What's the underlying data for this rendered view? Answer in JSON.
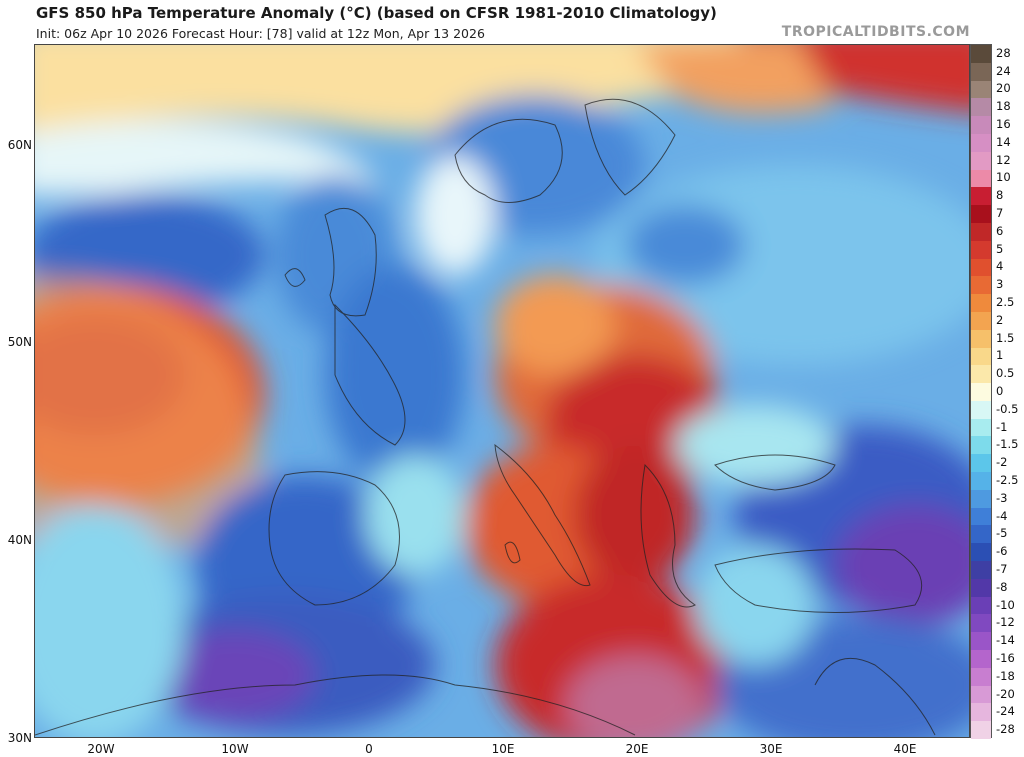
{
  "header": {
    "title": "GFS 850 hPa Temperature Anomaly (°C) (based on CFSR 1981-2010 Climatology)",
    "subtitle": "Init: 06z Apr 10 2026   Forecast Hour: [78]   valid at 12z Mon, Apr 13 2026",
    "brand": "TROPICALTIDBITS.COM"
  },
  "axes": {
    "lat_labels": [
      "60N",
      "50N",
      "40N",
      "30N"
    ],
    "lon_labels": [
      "20W",
      "10W",
      "0",
      "10E",
      "20E",
      "30E",
      "40E"
    ]
  },
  "colorbar": {
    "levels": [
      "28",
      "24",
      "20",
      "18",
      "16",
      "14",
      "12",
      "10",
      "8",
      "7",
      "6",
      "5",
      "4",
      "3",
      "2.5",
      "2",
      "1.5",
      "1",
      "0.5",
      "0",
      "-0.5",
      "-1",
      "-1.5",
      "-2",
      "-2.5",
      "-3",
      "-4",
      "-5",
      "-6",
      "-7",
      "-8",
      "-10",
      "-12",
      "-14",
      "-16",
      "-18",
      "-20",
      "-24",
      "-28"
    ],
    "colors": [
      "#5a4a3a",
      "#7a6656",
      "#9a8476",
      "#b58aa6",
      "#c88aba",
      "#d68fc4",
      "#e29ac4",
      "#ec8aa8",
      "#c81e32",
      "#a8101c",
      "#c02828",
      "#d43a2e",
      "#e0502e",
      "#e86a34",
      "#ef8a3c",
      "#f3a450",
      "#f6c06a",
      "#f9d88a",
      "#fbe8aa",
      "#fdfbe0",
      "#d8f7f5",
      "#a8ecef",
      "#7ddbeb",
      "#5cc6ea",
      "#55b2e8",
      "#4e9ae0",
      "#3f7fd8",
      "#3466c8",
      "#2b4fb4",
      "#3e3fa4",
      "#5238a8",
      "#6a3fb6",
      "#8049c0",
      "#9a55c8",
      "#b465cc",
      "#c87ed0",
      "#d89ad6",
      "#e6b6de",
      "#f0d2e6"
    ]
  },
  "map_legend": {
    "regions_hint": [
      "Atlantic warm anomaly",
      "Central Europe warm",
      "Iberia cold",
      "Turkey cold",
      "Arctic warm"
    ]
  }
}
